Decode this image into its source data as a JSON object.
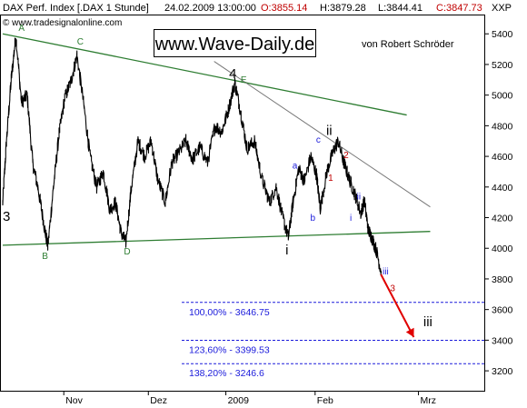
{
  "header": {
    "instrument": "DAX Perf. Index [.DAX  1 Stunde]",
    "datetime": "24.02.2009 13:00:00",
    "open": "O:3855.14",
    "high": "H:3879.28",
    "low": "L:3844.41",
    "close": "C:3847.73",
    "source": "© www.tradesignalonline.com",
    "symbol": "XXP"
  },
  "branding": {
    "site": "www.Wave-Daily.de",
    "author": "von Robert Schröder"
  },
  "chart_data": {
    "type": "line",
    "title": "DAX Perf. Index [.DAX  1 Stunde]",
    "xlabel": "",
    "ylabel": "",
    "ylim": [
      3070,
      5520
    ],
    "y_ticks": [
      3200,
      3400,
      3600,
      3800,
      4000,
      4200,
      4400,
      4600,
      4800,
      5000,
      5200,
      5400
    ],
    "y_axis_side": "right",
    "x_ticks": [
      {
        "label": "Nov",
        "t": 0.13
      },
      {
        "label": "Dez",
        "t": 0.31
      },
      {
        "label": "2009",
        "t": 0.475
      },
      {
        "label": "Feb",
        "t": 0.665
      },
      {
        "label": "Mrz",
        "t": 0.885
      }
    ],
    "x_domain": [
      0,
      1
    ],
    "grid": false,
    "legend": "none",
    "colors": {
      "price": "#000000",
      "trendline": "#2e7d32",
      "channel": "#777777",
      "fib": "#1a1adb",
      "arrow": "#e00000"
    },
    "anchors": [
      {
        "t": 0.0,
        "v": 4300
      },
      {
        "t": 0.008,
        "v": 4700
      },
      {
        "t": 0.018,
        "v": 5100
      },
      {
        "t": 0.028,
        "v": 5390
      },
      {
        "t": 0.04,
        "v": 4950
      },
      {
        "t": 0.052,
        "v": 5000
      },
      {
        "t": 0.064,
        "v": 4550
      },
      {
        "t": 0.076,
        "v": 4380
      },
      {
        "t": 0.088,
        "v": 4150
      },
      {
        "t": 0.096,
        "v": 4010
      },
      {
        "t": 0.108,
        "v": 4400
      },
      {
        "t": 0.12,
        "v": 4750
      },
      {
        "t": 0.132,
        "v": 4980
      },
      {
        "t": 0.146,
        "v": 5100
      },
      {
        "t": 0.158,
        "v": 5260
      },
      {
        "t": 0.172,
        "v": 4950
      },
      {
        "t": 0.186,
        "v": 4600
      },
      {
        "t": 0.2,
        "v": 4400
      },
      {
        "t": 0.214,
        "v": 4500
      },
      {
        "t": 0.228,
        "v": 4250
      },
      {
        "t": 0.24,
        "v": 4300
      },
      {
        "t": 0.252,
        "v": 4100
      },
      {
        "t": 0.262,
        "v": 4040
      },
      {
        "t": 0.274,
        "v": 4400
      },
      {
        "t": 0.288,
        "v": 4700
      },
      {
        "t": 0.302,
        "v": 4600
      },
      {
        "t": 0.316,
        "v": 4700
      },
      {
        "t": 0.33,
        "v": 4450
      },
      {
        "t": 0.346,
        "v": 4300
      },
      {
        "t": 0.36,
        "v": 4560
      },
      {
        "t": 0.374,
        "v": 4620
      },
      {
        "t": 0.39,
        "v": 4700
      },
      {
        "t": 0.404,
        "v": 4580
      },
      {
        "t": 0.42,
        "v": 4660
      },
      {
        "t": 0.436,
        "v": 4560
      },
      {
        "t": 0.452,
        "v": 4800
      },
      {
        "t": 0.466,
        "v": 4760
      },
      {
        "t": 0.48,
        "v": 4900
      },
      {
        "t": 0.494,
        "v": 5080
      },
      {
        "t": 0.506,
        "v": 4900
      },
      {
        "t": 0.52,
        "v": 4650
      },
      {
        "t": 0.536,
        "v": 4700
      },
      {
        "t": 0.552,
        "v": 4450
      },
      {
        "t": 0.568,
        "v": 4300
      },
      {
        "t": 0.582,
        "v": 4400
      },
      {
        "t": 0.596,
        "v": 4200
      },
      {
        "t": 0.608,
        "v": 4070
      },
      {
        "t": 0.618,
        "v": 4300
      },
      {
        "t": 0.63,
        "v": 4520
      },
      {
        "t": 0.642,
        "v": 4440
      },
      {
        "t": 0.656,
        "v": 4600
      },
      {
        "t": 0.668,
        "v": 4480
      },
      {
        "t": 0.676,
        "v": 4260
      },
      {
        "t": 0.69,
        "v": 4500
      },
      {
        "t": 0.702,
        "v": 4620
      },
      {
        "t": 0.714,
        "v": 4700
      },
      {
        "t": 0.726,
        "v": 4560
      },
      {
        "t": 0.738,
        "v": 4450
      },
      {
        "t": 0.75,
        "v": 4350
      },
      {
        "t": 0.762,
        "v": 4230
      },
      {
        "t": 0.77,
        "v": 4310
      },
      {
        "t": 0.778,
        "v": 4120
      },
      {
        "t": 0.786,
        "v": 4070
      },
      {
        "t": 0.796,
        "v": 3980
      },
      {
        "t": 0.806,
        "v": 3840
      }
    ],
    "trendlines": [
      {
        "name": "upper-trendline",
        "kind": "trend",
        "from": {
          "t": 0.0,
          "v": 5400
        },
        "to": {
          "t": 0.86,
          "v": 4870
        }
      },
      {
        "name": "lower-trendline",
        "kind": "trend",
        "from": {
          "t": 0.0,
          "v": 4020
        },
        "to": {
          "t": 0.91,
          "v": 4110
        }
      },
      {
        "name": "channel-line",
        "kind": "channel",
        "from": {
          "t": 0.45,
          "v": 5220
        },
        "to": {
          "t": 0.91,
          "v": 4270
        }
      }
    ],
    "fib_levels": [
      {
        "label": "100,00% - 3646.75",
        "value": 3646.75
      },
      {
        "label": "123,60% - 3399.53",
        "value": 3399.53
      },
      {
        "label": "138,20% - 3246.6",
        "value": 3246.6
      }
    ],
    "projection": {
      "from": {
        "t": 0.805,
        "v": 3830
      },
      "to": {
        "t": 0.875,
        "v": 3420
      }
    },
    "wave_labels": [
      {
        "text": "A",
        "t": 0.04,
        "v": 5420,
        "color": "#2e7d32",
        "size": 10
      },
      {
        "text": "C",
        "t": 0.165,
        "v": 5330,
        "color": "#2e7d32",
        "size": 10
      },
      {
        "text": "3",
        "t": 0.008,
        "v": 4180,
        "color": "#000000",
        "size": 15
      },
      {
        "text": "B",
        "t": 0.09,
        "v": 3930,
        "color": "#2e7d32",
        "size": 10
      },
      {
        "text": "D",
        "t": 0.265,
        "v": 3960,
        "color": "#2e7d32",
        "size": 10
      },
      {
        "text": "4",
        "t": 0.49,
        "v": 5110,
        "color": "#000000",
        "size": 15
      },
      {
        "text": "E",
        "t": 0.513,
        "v": 5080,
        "color": "#2e7d32",
        "size": 10
      },
      {
        "text": "i",
        "t": 0.605,
        "v": 3960,
        "color": "#000000",
        "size": 15
      },
      {
        "text": "a",
        "t": 0.622,
        "v": 4520,
        "color": "#1a1adb",
        "size": 10
      },
      {
        "text": "b",
        "t": 0.66,
        "v": 4180,
        "color": "#1a1adb",
        "size": 10
      },
      {
        "text": "c",
        "t": 0.672,
        "v": 4690,
        "color": "#1a1adb",
        "size": 10
      },
      {
        "text": "ii",
        "t": 0.695,
        "v": 4740,
        "color": "#000000",
        "size": 15
      },
      {
        "text": "1",
        "t": 0.698,
        "v": 4440,
        "color": "#c00000",
        "size": 10
      },
      {
        "text": "2",
        "t": 0.731,
        "v": 4590,
        "color": "#c00000",
        "size": 10
      },
      {
        "text": "i",
        "t": 0.741,
        "v": 4180,
        "color": "#1a1adb",
        "size": 10
      },
      {
        "text": "ii",
        "t": 0.758,
        "v": 4320,
        "color": "#1a1adb",
        "size": 10
      },
      {
        "text": "iii",
        "t": 0.815,
        "v": 3830,
        "color": "#1a1adb",
        "size": 10
      },
      {
        "text": "3",
        "t": 0.83,
        "v": 3720,
        "color": "#c00000",
        "size": 10
      },
      {
        "text": "iii",
        "t": 0.905,
        "v": 3490,
        "color": "#000000",
        "size": 15
      }
    ]
  }
}
